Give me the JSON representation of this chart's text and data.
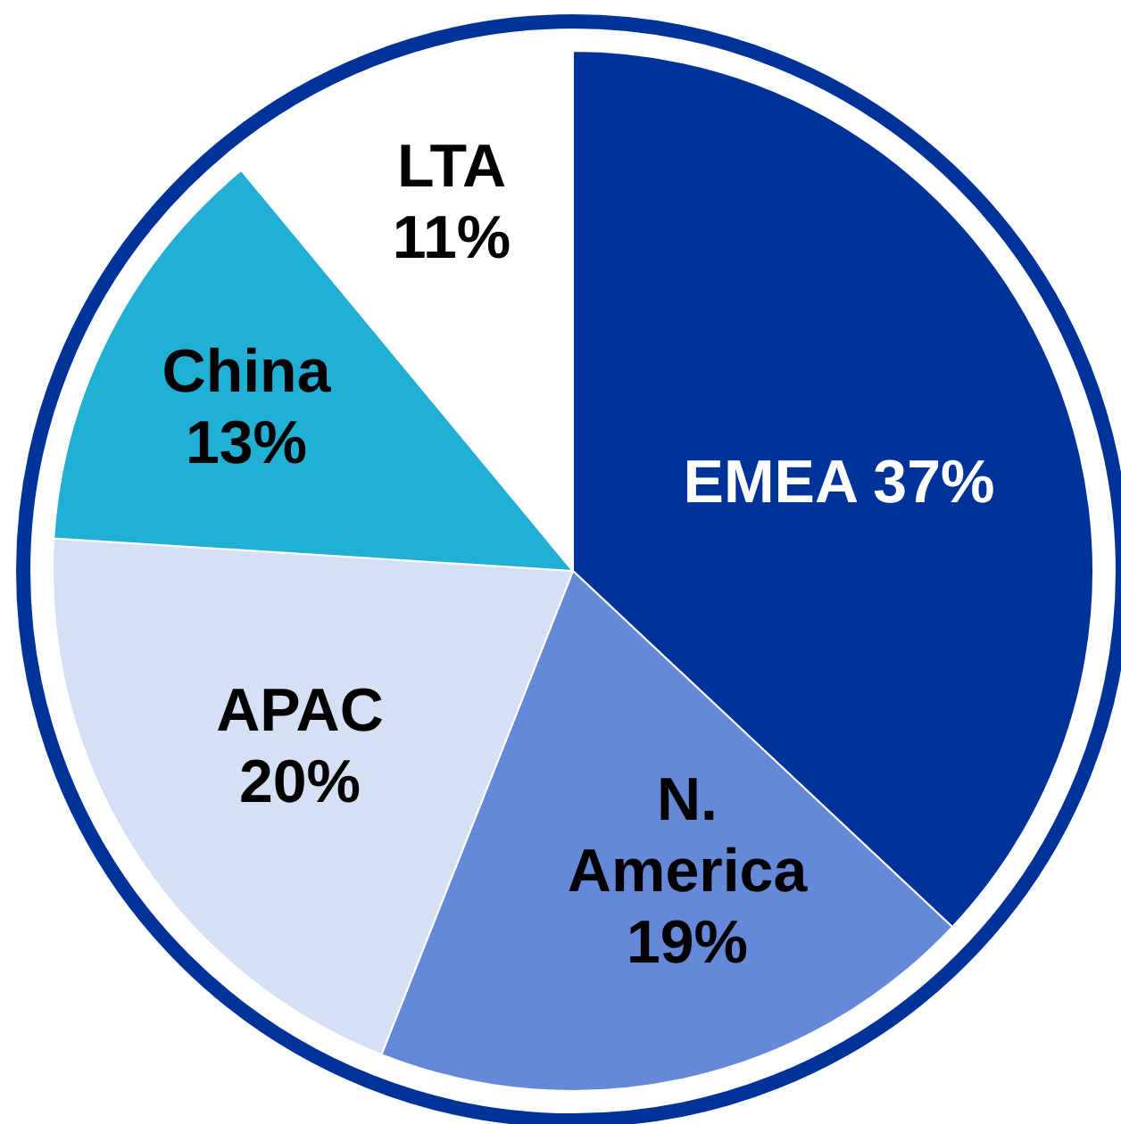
{
  "chart_data": {
    "type": "pie",
    "categories": [
      "EMEA",
      "N. America",
      "APAC",
      "China",
      "LTA"
    ],
    "values": [
      37,
      19,
      20,
      13,
      11
    ],
    "colors": [
      "#003399",
      "#6688d8",
      "#d6e0f4",
      "#21afd3",
      "#ffffff"
    ],
    "value_labels": [
      "37%",
      "19%",
      "20%",
      "13%",
      "11%"
    ],
    "legend": false
  }
}
